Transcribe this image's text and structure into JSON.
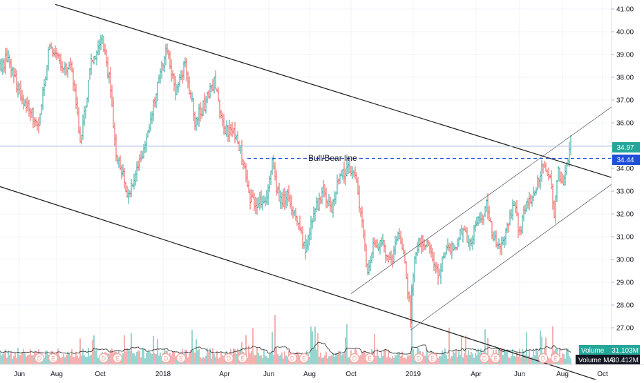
{
  "chart_data": {
    "type": "candlestick",
    "title": "",
    "price_axis": {
      "ticks": [
        "27.00",
        "28.00",
        "29.00",
        "30.00",
        "31.00",
        "32.00",
        "33.00",
        "34.00",
        "35.00",
        "36.00",
        "37.00",
        "38.00",
        "39.00",
        "40.00",
        "41.00"
      ],
      "range": [
        26.3,
        41.3
      ]
    },
    "time_axis": {
      "ticks": [
        "Jun",
        "Aug",
        "Oct",
        "2018",
        "Apr",
        "Jun",
        "Aug",
        "Oct",
        "2019",
        "Apr",
        "Jun",
        "Aug",
        "Oct"
      ]
    },
    "price_anchors": [
      {
        "day": 0,
        "close": 38.4
      },
      {
        "day": 12,
        "close": 38.9
      },
      {
        "day": 28,
        "close": 37.3
      },
      {
        "day": 45,
        "close": 36.5
      },
      {
        "day": 55,
        "close": 35.6
      },
      {
        "day": 72,
        "close": 39.5
      },
      {
        "day": 90,
        "close": 38.5
      },
      {
        "day": 104,
        "close": 38.4
      },
      {
        "day": 116,
        "close": 35.2
      },
      {
        "day": 132,
        "close": 38.6
      },
      {
        "day": 148,
        "close": 39.7
      },
      {
        "day": 160,
        "close": 37.6
      },
      {
        "day": 168,
        "close": 34.5
      },
      {
        "day": 176,
        "close": 33.9
      },
      {
        "day": 186,
        "close": 32.7
      },
      {
        "day": 197,
        "close": 33.8
      },
      {
        "day": 213,
        "close": 35.3
      },
      {
        "day": 230,
        "close": 38.0
      },
      {
        "day": 242,
        "close": 39.3
      },
      {
        "day": 254,
        "close": 37.4
      },
      {
        "day": 268,
        "close": 38.6
      },
      {
        "day": 282,
        "close": 36.1
      },
      {
        "day": 296,
        "close": 36.8
      },
      {
        "day": 310,
        "close": 37.8
      },
      {
        "day": 324,
        "close": 35.7
      },
      {
        "day": 340,
        "close": 35.5
      },
      {
        "day": 351,
        "close": 34.5
      },
      {
        "day": 362,
        "close": 32.6
      },
      {
        "day": 374,
        "close": 32.5
      },
      {
        "day": 386,
        "close": 32.7
      },
      {
        "day": 394,
        "close": 34.2
      },
      {
        "day": 404,
        "close": 32.5
      },
      {
        "day": 418,
        "close": 32.8
      },
      {
        "day": 432,
        "close": 31.5
      },
      {
        "day": 442,
        "close": 30.3
      },
      {
        "day": 454,
        "close": 32.0
      },
      {
        "day": 468,
        "close": 33.0
      },
      {
        "day": 480,
        "close": 32.2
      },
      {
        "day": 490,
        "close": 33.6
      },
      {
        "day": 502,
        "close": 34.0
      },
      {
        "day": 514,
        "close": 33.8
      },
      {
        "day": 522,
        "close": 32.1
      },
      {
        "day": 532,
        "close": 29.4
      },
      {
        "day": 542,
        "close": 30.8
      },
      {
        "day": 554,
        "close": 30.6
      },
      {
        "day": 566,
        "close": 29.8
      },
      {
        "day": 576,
        "close": 31.0
      },
      {
        "day": 586,
        "close": 29.8
      },
      {
        "day": 594,
        "close": 27.5
      },
      {
        "day": 600,
        "close": 30.3
      },
      {
        "day": 610,
        "close": 30.9
      },
      {
        "day": 622,
        "close": 30.4
      },
      {
        "day": 634,
        "close": 29.3
      },
      {
        "day": 648,
        "close": 30.6
      },
      {
        "day": 656,
        "close": 30.4
      },
      {
        "day": 668,
        "close": 31.4
      },
      {
        "day": 680,
        "close": 30.8
      },
      {
        "day": 692,
        "close": 31.6
      },
      {
        "day": 704,
        "close": 32.4
      },
      {
        "day": 712,
        "close": 31.2
      },
      {
        "day": 722,
        "close": 30.5
      },
      {
        "day": 734,
        "close": 31.3
      },
      {
        "day": 744,
        "close": 32.5
      },
      {
        "day": 752,
        "close": 31.1
      },
      {
        "day": 760,
        "close": 32.2
      },
      {
        "day": 770,
        "close": 32.6
      },
      {
        "day": 778,
        "close": 33.4
      },
      {
        "day": 786,
        "close": 34.1
      },
      {
        "day": 796,
        "close": 33.6
      },
      {
        "day": 802,
        "close": 32.0
      },
      {
        "day": 808,
        "close": 33.8
      },
      {
        "day": 814,
        "close": 33.5
      },
      {
        "day": 820,
        "close": 34.2
      },
      {
        "day": 826,
        "close": 34.97
      }
    ],
    "volume_spikes": [
      {
        "day": 398,
        "scale": 0.55
      },
      {
        "day": 596,
        "scale": 0.9
      },
      {
        "day": 350,
        "scale": 0.25
      },
      {
        "day": 500,
        "scale": 0.3
      }
    ],
    "trend_lines": [
      {
        "name": "upper-descending",
        "from": {
          "day": 80,
          "price": 41.2
        },
        "to": {
          "day": 885,
          "price": 33.6
        }
      },
      {
        "name": "lower-descending",
        "from": {
          "day": 0,
          "price": 33.2
        },
        "to": {
          "day": 885,
          "price": 24.5
        }
      },
      {
        "name": "channel-top",
        "from": {
          "day": 508,
          "price": 28.5
        },
        "to": {
          "day": 885,
          "price": 36.7
        }
      },
      {
        "name": "channel-bottom",
        "from": {
          "day": 594,
          "price": 26.9
        },
        "to": {
          "day": 885,
          "price": 33.3
        }
      }
    ],
    "horizontal_lines": [
      {
        "price": 34.97,
        "style": "solid"
      },
      {
        "price": 34.44,
        "style": "dashed",
        "from_day": 358,
        "label": "Bull/Bear line"
      }
    ],
    "earnings_markers": {
      "D": [
        57,
        150,
        240,
        331,
        423,
        513,
        606,
        701,
        786
      ],
      "E": [
        77,
        170,
        262,
        351,
        440,
        535,
        626,
        717,
        804
      ]
    },
    "colors": {
      "up": "#26a69a",
      "down": "#ef5350",
      "up_volume": "#80cbc4",
      "down_volume": "#f19e9e",
      "dashed": "#1e4fd8",
      "last_price": "#26a69a",
      "volume_ma_bg": "#131722",
      "marker": "#f5a9a3"
    }
  },
  "last_price_label": "34.97",
  "bull_bear_price_label": "34.44",
  "bull_bear_text": "Bull/Bear line",
  "volume_legend": {
    "label": "Volume",
    "value": "31.103M"
  },
  "volume_ma_legend": {
    "label": "Volume MA",
    "value": "30.412M"
  },
  "marker_letters": {
    "dividend": "D",
    "earnings": "E"
  }
}
